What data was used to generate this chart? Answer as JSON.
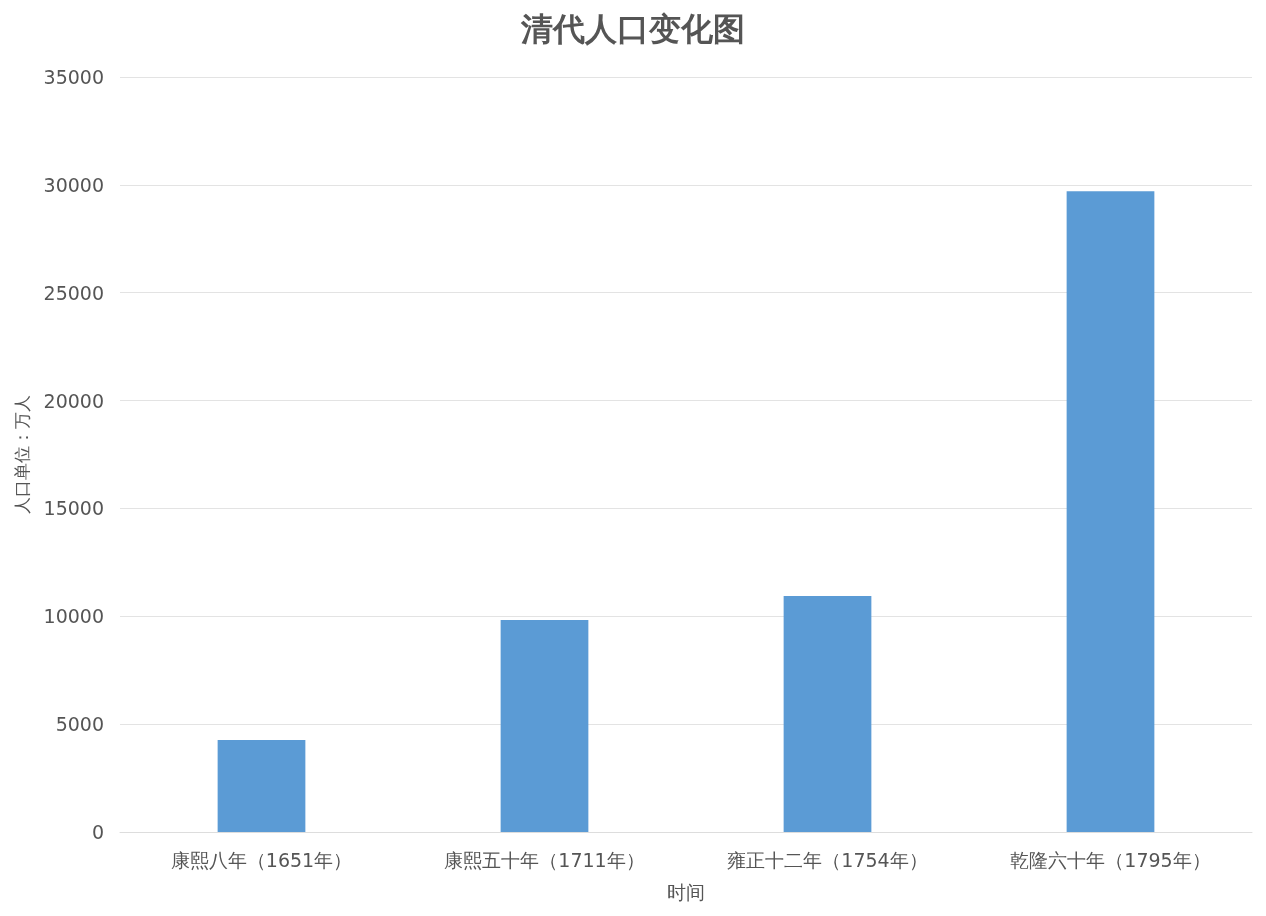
{
  "chart_data": {
    "type": "bar",
    "title": "清代人口变化图",
    "xlabel": "时间",
    "ylabel": "人口单位：万人",
    "categories": [
      "康熙八年（1651年）",
      "康熙五十年（1711年）",
      "雍正十二年（1754年）",
      "乾隆六十年（1795年）"
    ],
    "values": [
      4270,
      9830,
      10940,
      29700
    ],
    "color": "#5b9bd5",
    "ylim": [
      0,
      35000
    ],
    "yticks": [
      0,
      5000,
      10000,
      15000,
      20000,
      25000,
      30000,
      35000
    ],
    "grid": "y"
  }
}
